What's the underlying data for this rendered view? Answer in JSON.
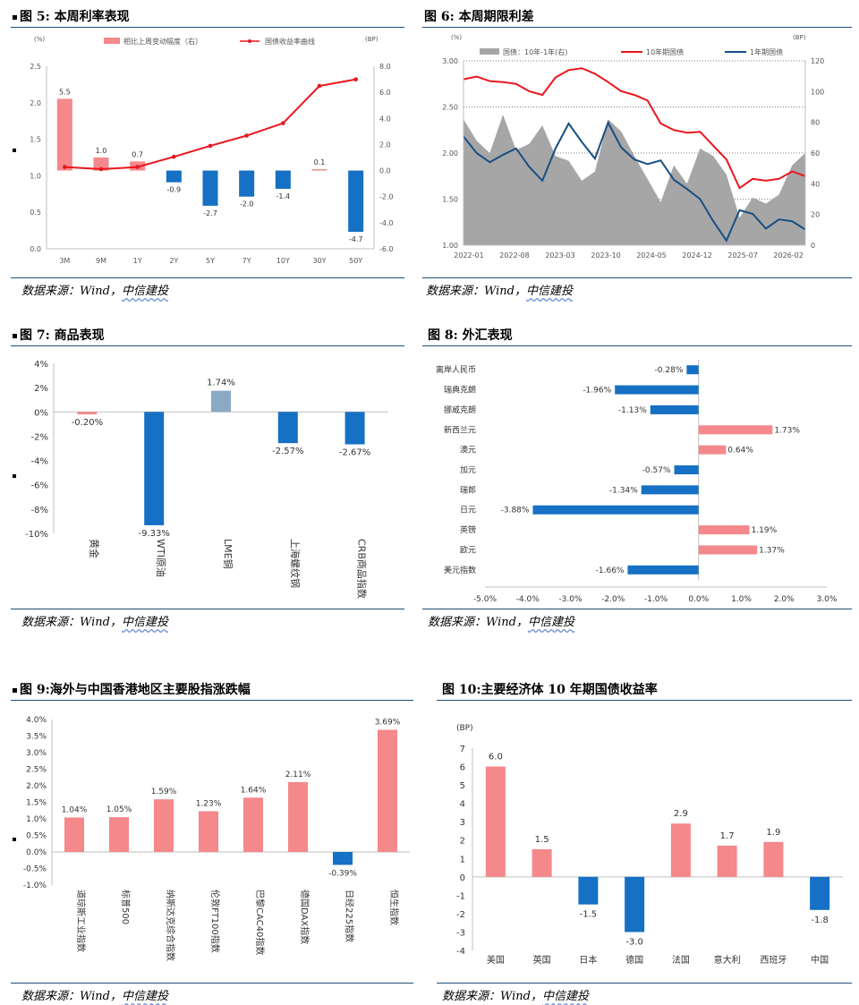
{
  "panels": {
    "p5": {
      "title": "图 5: 本周利率表现",
      "source_a": "数据来源：Wind，",
      "source_b": "中信建投"
    },
    "p6": {
      "title": "图 6: 本周期限利差",
      "source_a": "数据来源：Wind，",
      "source_b": "中信建投"
    },
    "p7": {
      "title": "图 7: 商品表现",
      "source_a": "数据来源：Wind，",
      "source_b": "中信建投"
    },
    "p8": {
      "title": "图 8: 外汇表现",
      "source_a": "数据来源：Wind，",
      "source_b": "中信建投"
    },
    "p9": {
      "title": "图 9:海外与中国香港地区主要股指涨跌幅",
      "source_a": "数据来源：Wind，",
      "source_b": "中信建投"
    },
    "p10": {
      "title": "图 10:主要经济体 10 年期国债收益率",
      "source_a": "数据来源：Wind，",
      "source_b": "中信建投"
    }
  },
  "colors": {
    "pink": "#f4888a",
    "red": "#e8161d",
    "blue": "#1670c4",
    "navy": "#184f83",
    "gray": "#a6a6a6",
    "steel": "#8aa9c4",
    "rule": "#1f4e79"
  },
  "chart_data": [
    {
      "id": "chart5",
      "type": "bar+line",
      "categories": [
        "3M",
        "9M",
        "1Y",
        "2Y",
        "5Y",
        "7Y",
        "10Y",
        "30Y",
        "50Y"
      ],
      "series": [
        {
          "name": "相比上周变动幅度（右）",
          "axis": "right",
          "type": "bar",
          "values": [
            5.5,
            1.0,
            0.7,
            -0.9,
            -2.7,
            -2.0,
            -1.4,
            0.1,
            -4.7
          ]
        },
        {
          "name": "国债收益率曲线",
          "axis": "left",
          "type": "line",
          "values": [
            1.12,
            1.09,
            1.12,
            1.26,
            1.41,
            1.55,
            1.72,
            2.23,
            2.32
          ]
        }
      ],
      "left_unit": "(%)",
      "right_unit": "(BP)",
      "ylim_left": [
        0,
        2.5
      ],
      "left_ticks": [
        "0.0",
        "0.5",
        "1.0",
        "1.5",
        "2.0",
        "2.5"
      ],
      "ylim_right": [
        -6,
        8
      ],
      "right_ticks": [
        "-6.0",
        "-4.0",
        "-2.0",
        "0.0",
        "2.0",
        "4.0",
        "6.0",
        "8.0"
      ],
      "data_labels": [
        "5.5",
        "1.0",
        "0.7",
        "-0.9",
        "-2.7",
        "-2.0",
        "-1.4",
        "0.1",
        "-4.7"
      ],
      "legend": "top"
    },
    {
      "id": "chart6",
      "type": "area+line",
      "x_ticks": [
        "2022-01",
        "2022-08",
        "2023-03",
        "2023-10",
        "2024-05",
        "2024-12",
        "2025-07",
        "2026-02"
      ],
      "left_unit": "(%)",
      "right_unit": "(BP)",
      "ylim_left": [
        1.0,
        3.0
      ],
      "left_ticks": [
        "1.00",
        "1.50",
        "2.00",
        "2.50",
        "3.00"
      ],
      "ylim_right": [
        0,
        120
      ],
      "right_ticks": [
        "0",
        "20",
        "40",
        "60",
        "80",
        "100",
        "120"
      ],
      "series": [
        {
          "name": "国债：10年-1年(右)",
          "axis": "right",
          "type": "area",
          "x": [
            0,
            2,
            4,
            6,
            8,
            10,
            12,
            14,
            16,
            18,
            20,
            22,
            24,
            26,
            28,
            30,
            32,
            34,
            36,
            38,
            40,
            42,
            44,
            46,
            48,
            50,
            52
          ],
          "values": [
            82,
            68,
            60,
            85,
            62,
            66,
            78,
            58,
            55,
            42,
            48,
            82,
            74,
            58,
            43,
            28,
            52,
            40,
            63,
            58,
            46,
            18,
            31,
            27,
            33,
            52,
            60
          ]
        },
        {
          "name": "10年期国债",
          "axis": "left",
          "type": "line",
          "x": [
            0,
            2,
            4,
            6,
            8,
            10,
            12,
            14,
            16,
            18,
            20,
            22,
            24,
            26,
            28,
            30,
            32,
            34,
            36,
            38,
            40,
            42,
            44,
            46,
            48,
            50,
            52
          ],
          "values": [
            2.8,
            2.83,
            2.78,
            2.77,
            2.75,
            2.67,
            2.63,
            2.82,
            2.9,
            2.92,
            2.86,
            2.77,
            2.67,
            2.63,
            2.57,
            2.32,
            2.25,
            2.22,
            2.23,
            2.08,
            1.93,
            1.62,
            1.72,
            1.7,
            1.72,
            1.8,
            1.75
          ]
        },
        {
          "name": "1年期国债",
          "axis": "left",
          "type": "line",
          "x": [
            0,
            2,
            4,
            6,
            8,
            10,
            12,
            14,
            16,
            18,
            20,
            22,
            24,
            26,
            28,
            30,
            32,
            34,
            36,
            38,
            40,
            42,
            44,
            46,
            48,
            50,
            52
          ],
          "values": [
            2.18,
            2.0,
            1.9,
            1.98,
            2.05,
            1.85,
            1.7,
            2.05,
            2.32,
            2.12,
            1.94,
            2.33,
            2.06,
            1.93,
            1.88,
            1.92,
            1.71,
            1.61,
            1.5,
            1.26,
            1.05,
            1.38,
            1.34,
            1.18,
            1.28,
            1.26,
            1.17
          ]
        }
      ],
      "legend": "top"
    },
    {
      "id": "chart7",
      "type": "bar",
      "categories": [
        "黄金",
        "WTI原油",
        "LME铜",
        "上海螺纹钢",
        "CRB商品指数"
      ],
      "values": [
        -0.2,
        -9.33,
        1.74,
        -2.57,
        -2.67
      ],
      "data_labels": [
        "-0.20%",
        "-9.33%",
        "1.74%",
        "-2.57%",
        "-2.67%"
      ],
      "ylim": [
        -10,
        4
      ],
      "y_ticks": [
        "-10%",
        "-8%",
        "-6%",
        "-4%",
        "-2%",
        "0%",
        "2%",
        "4%"
      ]
    },
    {
      "id": "chart8",
      "type": "bar-horizontal",
      "categories": [
        "离岸人民币",
        "瑞典克朗",
        "挪威克朗",
        "新西兰元",
        "澳元",
        "加元",
        "瑞郎",
        "日元",
        "英镑",
        "欧元",
        "美元指数"
      ],
      "values": [
        -0.28,
        -1.96,
        -1.13,
        1.73,
        0.64,
        -0.57,
        -1.34,
        -3.88,
        1.19,
        1.37,
        -1.66
      ],
      "data_labels": [
        "-0.28%",
        "-1.96%",
        "-1.13%",
        "1.73%",
        "0.64%",
        "-0.57%",
        "-1.34%",
        "-3.88%",
        "1.19%",
        "1.37%",
        "-1.66%"
      ],
      "xlim": [
        -5,
        3
      ],
      "x_ticks": [
        "-5.0%",
        "-4.0%",
        "-3.0%",
        "-2.0%",
        "-1.0%",
        "0.0%",
        "1.0%",
        "2.0%",
        "3.0%"
      ]
    },
    {
      "id": "chart9",
      "type": "bar",
      "categories": [
        "道琼斯工业指数",
        "标普500",
        "纳斯达克综合指数",
        "伦敦FT100指数",
        "巴黎CAC40指数",
        "德国DAX指数",
        "日经225指数",
        "恒生指数"
      ],
      "values": [
        1.04,
        1.05,
        1.59,
        1.23,
        1.64,
        2.11,
        -0.39,
        3.69
      ],
      "data_labels": [
        "1.04%",
        "1.05%",
        "1.59%",
        "1.23%",
        "1.64%",
        "2.11%",
        "-0.39%",
        "3.69%"
      ],
      "ylim": [
        -1,
        4
      ],
      "y_ticks": [
        "-1.0%",
        "-0.5%",
        "0.0%",
        "0.5%",
        "1.0%",
        "1.5%",
        "2.0%",
        "2.5%",
        "3.0%",
        "3.5%",
        "4.0%"
      ]
    },
    {
      "id": "chart10",
      "type": "bar",
      "categories": [
        "美国",
        "英国",
        "日本",
        "德国",
        "法国",
        "意大利",
        "西班牙",
        "中国"
      ],
      "values": [
        6.0,
        1.5,
        -1.5,
        -3.0,
        2.9,
        1.7,
        1.9,
        -1.8
      ],
      "data_labels": [
        "6.0",
        "1.5",
        "-1.5",
        "-3.0",
        "2.9",
        "1.7",
        "1.9",
        "-1.8"
      ],
      "unit": "(BP)",
      "ylim": [
        -4,
        7
      ],
      "y_ticks": [
        "-4",
        "-3",
        "-2",
        "-1",
        "0",
        "1",
        "2",
        "3",
        "4",
        "5",
        "6",
        "7"
      ]
    }
  ]
}
